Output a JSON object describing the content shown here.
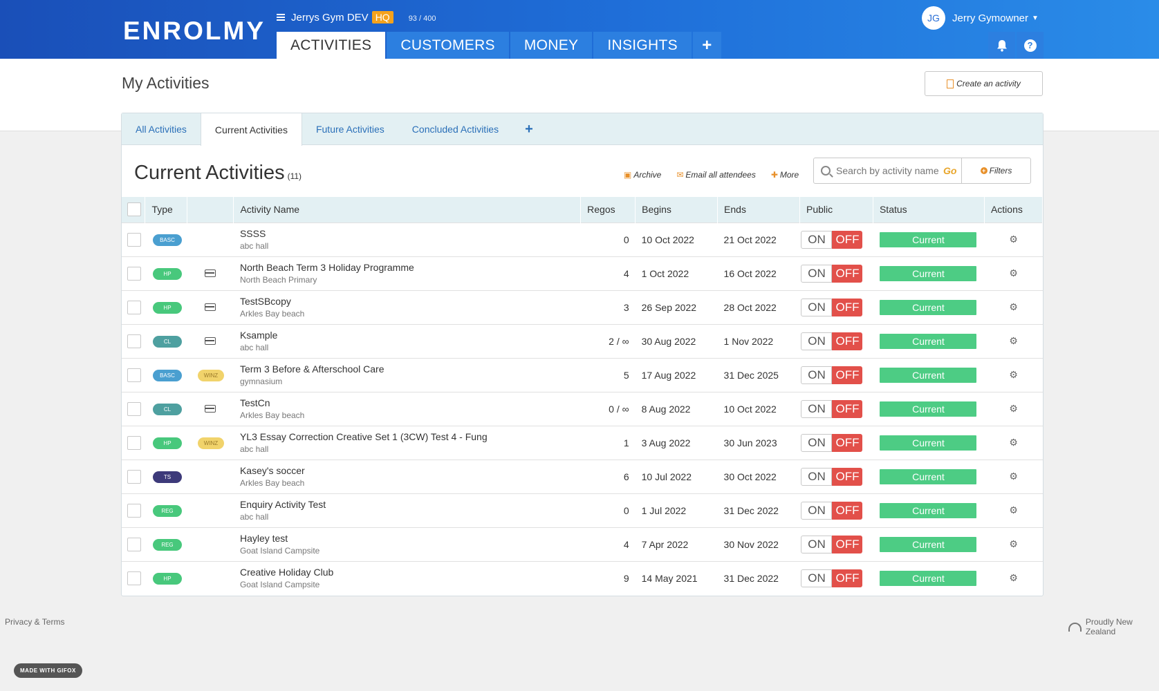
{
  "brand": {
    "logo": "ENROLMY"
  },
  "org": {
    "name": "Jerrys Gym DEV",
    "badge": "HQ",
    "counter": "93 / 400"
  },
  "user": {
    "initials": "JG",
    "name": "Jerry Gymowner"
  },
  "nav": {
    "tabs": [
      "ACTIVITIES",
      "CUSTOMERS",
      "MONEY",
      "INSIGHTS"
    ],
    "active": 0,
    "add": "+"
  },
  "page": {
    "title": "My Activities",
    "create_label": "Create an activity"
  },
  "activity_tabs": {
    "items": [
      "All Activities",
      "Current Activities",
      "Future Activities",
      "Concluded Activities"
    ],
    "active": 1,
    "add": "+"
  },
  "list": {
    "title": "Current Activities",
    "count": "(11)",
    "archive_label": "Archive",
    "email_label": "Email all attendees",
    "more_label": "More",
    "search_placeholder": "Search by activity name",
    "go_label": "Go",
    "filters_label": "Filters"
  },
  "table": {
    "headers": [
      "Type",
      "",
      "Activity Name",
      "Regos",
      "Begins",
      "Ends",
      "Public",
      "Status",
      "Actions"
    ],
    "on_label": "ON",
    "off_label": "OFF",
    "rows": [
      {
        "type": "BASC",
        "extra": "",
        "name": "SSSS",
        "location": "abc hall",
        "regos": "0",
        "begins": "10 Oct 2022",
        "ends": "21 Oct 2022",
        "status": "Current"
      },
      {
        "type": "HP",
        "extra": "card",
        "name": "North Beach Term 3 Holiday Programme",
        "location": "North Beach Primary",
        "regos": "4",
        "begins": "1 Oct 2022",
        "ends": "16 Oct 2022",
        "status": "Current"
      },
      {
        "type": "HP",
        "extra": "card",
        "name": "TestSBcopy",
        "location": "Arkles Bay beach",
        "regos": "3",
        "begins": "26 Sep 2022",
        "ends": "28 Oct 2022",
        "status": "Current"
      },
      {
        "type": "CL",
        "extra": "card",
        "name": "Ksample",
        "location": "abc hall",
        "regos": "2 / ∞",
        "begins": "30 Aug 2022",
        "ends": "1 Nov 2022",
        "status": "Current"
      },
      {
        "type": "BASC",
        "extra": "WINZ",
        "name": "Term 3 Before & Afterschool Care",
        "location": "gymnasium",
        "regos": "5",
        "begins": "17 Aug 2022",
        "ends": "31 Dec 2025",
        "status": "Current"
      },
      {
        "type": "CL",
        "extra": "card",
        "name": "TestCn",
        "location": "Arkles Bay beach",
        "regos": "0 / ∞",
        "begins": "8 Aug 2022",
        "ends": "10 Oct 2022",
        "status": "Current"
      },
      {
        "type": "HP",
        "extra": "WINZ",
        "name": "YL3 Essay Correction Creative Set 1 (3CW) Test 4 - Fung",
        "location": "abc hall",
        "regos": "1",
        "begins": "3 Aug 2022",
        "ends": "30 Jun 2023",
        "status": "Current"
      },
      {
        "type": "TS",
        "extra": "",
        "name": "Kasey's soccer",
        "location": "Arkles Bay beach",
        "regos": "6",
        "begins": "10 Jul 2022",
        "ends": "30 Oct 2022",
        "status": "Current"
      },
      {
        "type": "REG",
        "extra": "",
        "name": "Enquiry Activity Test",
        "location": "abc hall",
        "regos": "0",
        "begins": "1 Jul 2022",
        "ends": "31 Dec 2022",
        "status": "Current"
      },
      {
        "type": "REG",
        "extra": "",
        "name": "Hayley test",
        "location": "Goat Island Campsite",
        "regos": "4",
        "begins": "7 Apr 2022",
        "ends": "30 Nov 2022",
        "status": "Current"
      },
      {
        "type": "HP",
        "extra": "",
        "name": "Creative Holiday Club",
        "location": "Goat Island Campsite",
        "regos": "9",
        "begins": "14 May 2021",
        "ends": "31 Dec 2022",
        "status": "Current"
      }
    ]
  },
  "footer": {
    "privacy": "Privacy & Terms",
    "nz": "Proudly New Zealand",
    "gifox": "MADE WITH GIFOX"
  },
  "colors": {
    "header": "#1f6fd9",
    "status_current": "#4dcc84",
    "off": "#e2504a",
    "accent": "#e8902a"
  }
}
